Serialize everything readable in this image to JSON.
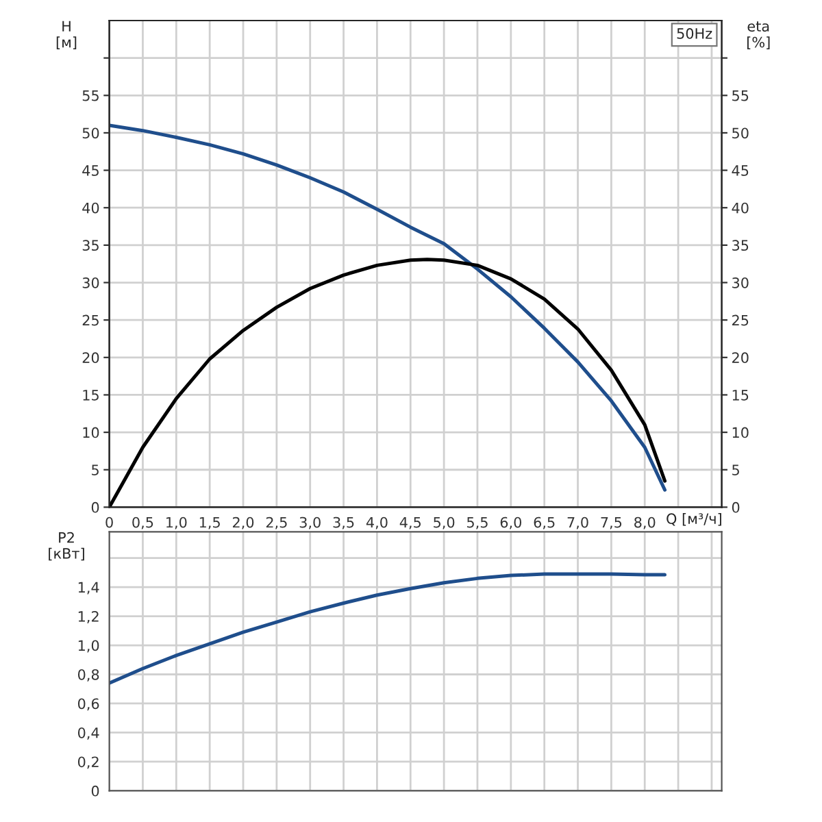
{
  "chart_data": [
    {
      "type": "line",
      "ylabel": "H\n[м]",
      "y2label": "eta\n[%]",
      "xlabel": "Q [м³/ч]",
      "annotations": [
        "50Hz"
      ],
      "grid": true,
      "legend": false,
      "marker": "none",
      "line_style": "solid",
      "xlim": [
        0,
        9.15
      ],
      "ylim": [
        0,
        65
      ],
      "y2lim": [
        0,
        65
      ],
      "xticks": [
        0,
        {
          "value": 0.5,
          "label": "0,5"
        },
        {
          "value": 1.0,
          "label": "1,0"
        },
        {
          "value": 1.5,
          "label": "1,5"
        },
        {
          "value": 2.0,
          "label": "2,0"
        },
        {
          "value": 2.5,
          "label": "2,5"
        },
        {
          "value": 3.0,
          "label": "3,0"
        },
        {
          "value": 3.5,
          "label": "3,5"
        },
        {
          "value": 4.0,
          "label": "4,0"
        },
        {
          "value": 4.5,
          "label": "4,5"
        },
        {
          "value": 5.0,
          "label": "5,0"
        },
        {
          "value": 5.5,
          "label": "5,5"
        },
        {
          "value": 6.0,
          "label": "6,0"
        },
        {
          "value": 6.5,
          "label": "6,5"
        },
        {
          "value": 7.0,
          "label": "7,0"
        },
        {
          "value": 7.5,
          "label": "7,5"
        },
        {
          "value": 8.0,
          "label": "8,0"
        },
        {
          "value": 8.5,
          "label": null
        },
        {
          "value": 9.0,
          "label": null
        }
      ],
      "yticks": [
        0,
        5,
        10,
        15,
        20,
        25,
        30,
        35,
        40,
        45,
        50,
        55,
        {
          "value": 60,
          "label": null
        }
      ],
      "y2ticks": [
        0,
        5,
        10,
        15,
        20,
        25,
        30,
        35,
        40,
        45,
        50,
        55,
        {
          "value": 60,
          "label": null
        }
      ],
      "series": [
        {
          "color": "#1f4e8c",
          "axis": "y",
          "x": [
            0,
            0.5,
            1.0,
            1.5,
            2.0,
            2.5,
            3.0,
            3.5,
            4.0,
            4.5,
            5.0,
            5.5,
            6.0,
            6.5,
            7.0,
            7.5,
            8.0,
            8.3
          ],
          "values": [
            51,
            50.3,
            49.4,
            48.4,
            47.2,
            45.7,
            44.0,
            42.1,
            39.8,
            37.4,
            35.2,
            31.8,
            28.1,
            23.9,
            19.4,
            14.2,
            8.0,
            2.3
          ]
        },
        {
          "color": "#000000",
          "axis": "y2",
          "x": [
            0,
            0.25,
            0.5,
            1.0,
            1.5,
            2.0,
            2.5,
            3.0,
            3.5,
            4.0,
            4.5,
            4.75,
            5.0,
            5.5,
            6.0,
            6.5,
            7.0,
            7.5,
            8.0,
            8.3
          ],
          "values": [
            0,
            4,
            8,
            14.5,
            19.8,
            23.6,
            26.7,
            29.2,
            31.0,
            32.3,
            33.0,
            33.1,
            33.0,
            32.3,
            30.5,
            27.8,
            23.8,
            18.3,
            11.0,
            3.5
          ]
        }
      ]
    },
    {
      "type": "line",
      "ylabel": "P2\n[кВт]",
      "grid": true,
      "legend": false,
      "marker": "none",
      "line_style": "solid",
      "tick_labels": "y",
      "xlim": [
        0,
        9.15
      ],
      "ylim": [
        0,
        1.78
      ],
      "xticks": [
        0,
        0.5,
        1.0,
        1.5,
        2.0,
        2.5,
        3.0,
        3.5,
        4.0,
        4.5,
        5.0,
        5.5,
        6.0,
        6.5,
        7.0,
        7.5,
        8.0,
        8.5,
        9.0
      ],
      "yticks": [
        0,
        {
          "value": 0.2,
          "label": "0,2"
        },
        {
          "value": 0.4,
          "label": "0,4"
        },
        {
          "value": 0.6,
          "label": "0,6"
        },
        {
          "value": 0.8,
          "label": "0,8"
        },
        {
          "value": 1.0,
          "label": "1,0"
        },
        {
          "value": 1.2,
          "label": "1,2"
        },
        {
          "value": 1.4,
          "label": "1,4"
        },
        {
          "value": 1.6,
          "label": null
        }
      ],
      "series": [
        {
          "color": "#1f4e8c",
          "x": [
            0,
            0.5,
            1.0,
            1.5,
            2.0,
            2.5,
            3.0,
            3.5,
            4.0,
            4.5,
            5.0,
            5.5,
            6.0,
            6.5,
            7.0,
            7.5,
            8.0,
            8.3
          ],
          "values": [
            0.74,
            0.84,
            0.93,
            1.01,
            1.09,
            1.16,
            1.23,
            1.29,
            1.345,
            1.39,
            1.43,
            1.46,
            1.48,
            1.49,
            1.49,
            1.49,
            1.485,
            1.485
          ]
        }
      ]
    }
  ]
}
